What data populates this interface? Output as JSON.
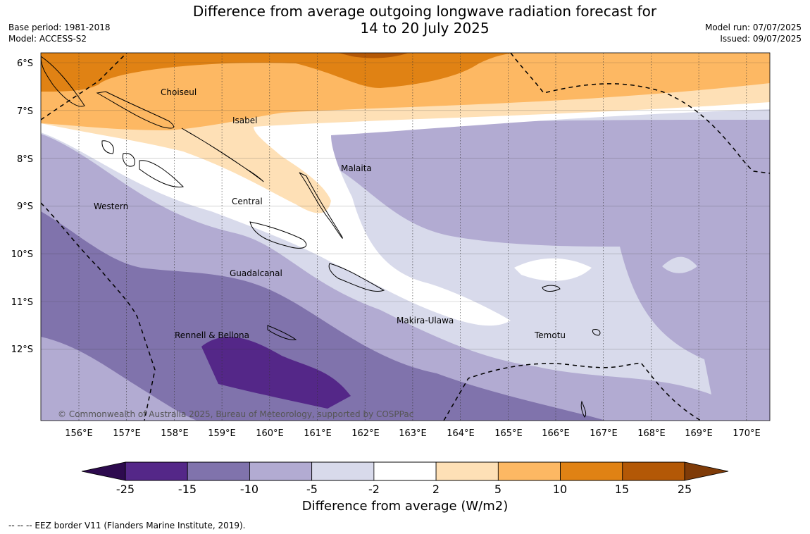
{
  "header": {
    "title_line1": "Difference from average outgoing longwave radiation forecast for",
    "title_line2": "14 to 20 July 2025",
    "base_period": "Base period: 1981-2018",
    "model": "Model: ACCESS-S2",
    "model_run": "Model run: 07/07/2025",
    "issued": "Issued: 09/07/2025"
  },
  "map": {
    "lat_labels": [
      "6°S",
      "7°S",
      "8°S",
      "9°S",
      "10°S",
      "11°S",
      "12°S"
    ],
    "lon_labels": [
      "156°E",
      "157°E",
      "158°E",
      "159°E",
      "160°E",
      "161°E",
      "162°E",
      "163°E",
      "164°E",
      "165°E",
      "166°E",
      "167°E",
      "168°E",
      "169°E",
      "170°E"
    ],
    "regions": [
      {
        "name": "Choiseul"
      },
      {
        "name": "Isabel"
      },
      {
        "name": "Malaita"
      },
      {
        "name": "Western"
      },
      {
        "name": "Central"
      },
      {
        "name": "Guadalcanal"
      },
      {
        "name": "Rennell & Bellona"
      },
      {
        "name": "Makira-Ulawa"
      },
      {
        "name": "Temotu"
      }
    ],
    "copyright": "© Commonwealth of Australia 2025, Bureau of Meteorology, supported by COSPPac"
  },
  "colorbar": {
    "ticks": [
      "-25",
      "-15",
      "-10",
      "-5",
      "-2",
      "2",
      "5",
      "10",
      "15",
      "25"
    ],
    "colors": [
      "#2d0a4e",
      "#542788",
      "#8073ac",
      "#b2abd2",
      "#d8daeb",
      "#ffffff",
      "#fee0b6",
      "#fdb863",
      "#e08214",
      "#b35806",
      "#7f3b08"
    ],
    "title": "Difference from average (W/m2)"
  },
  "footnote": "--  --  -- EEZ border V11 (Flanders Marine Institute, 2019)."
}
